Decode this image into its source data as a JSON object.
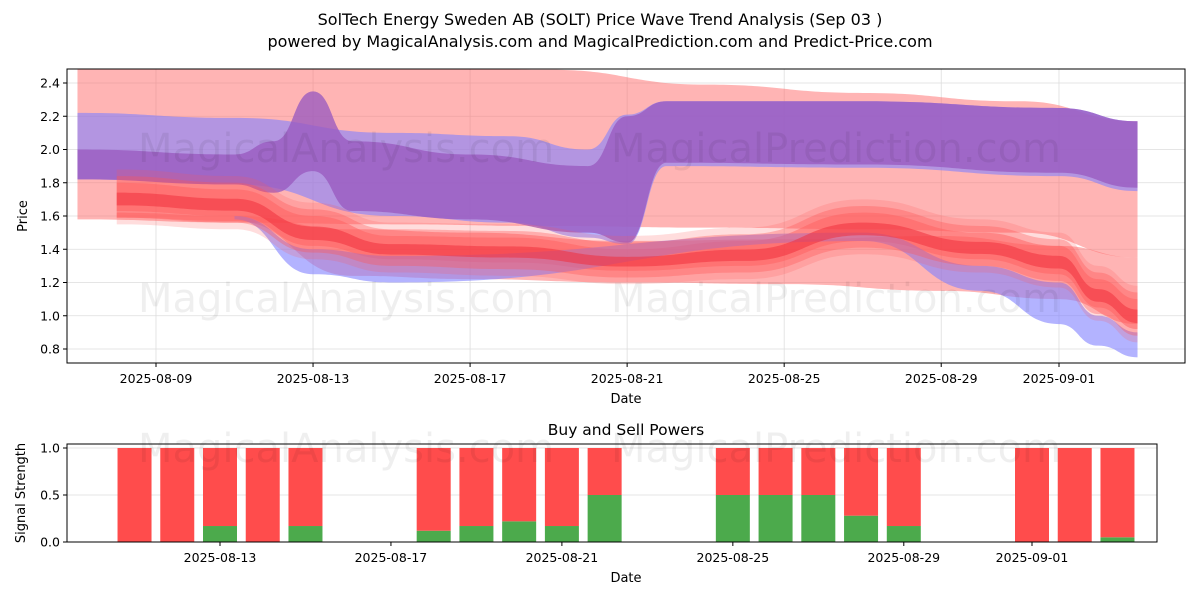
{
  "header": {
    "title": "SolTech Energy Sweden AB (SOLT) Price Wave Trend Analysis (Sep 03 )",
    "subtitle": "powered by MagicalAnalysis.com and MagicalPrediction.com and Predict-Price.com"
  },
  "watermarks": [
    "MagicalAnalysis.com",
    "MagicalPrediction.com"
  ],
  "colors": {
    "red_band": "#ff4a4a",
    "blue_band": "#6f6fff",
    "purple_overlap": "#9955bb",
    "buy": "#4caa4c",
    "sell": "#ff4c4c",
    "grid": "#dddddd"
  },
  "chart_data": [
    {
      "type": "area",
      "title": "",
      "xlabel": "Date",
      "ylabel": "Price",
      "ylim": [
        0.7,
        2.48
      ],
      "xlim": [
        "2025-08-06",
        "2025-09-04"
      ],
      "yticks": [
        "0.8",
        "1.0",
        "1.2",
        "1.4",
        "1.6",
        "1.8",
        "2.0",
        "2.2",
        "2.4"
      ],
      "xticks": [
        "2025-08-09",
        "2025-08-13",
        "2025-08-17",
        "2025-08-21",
        "2025-08-25",
        "2025-08-29",
        "2025-09-01"
      ],
      "grid": true,
      "series": [
        {
          "name": "red-wide-band",
          "color": "red",
          "x": [
            "2025-08-07",
            "2025-08-11",
            "2025-08-15",
            "2025-08-19",
            "2025-08-23",
            "2025-08-27",
            "2025-08-31",
            "2025-09-03"
          ],
          "upper": [
            2.5,
            2.5,
            2.5,
            2.48,
            2.39,
            2.34,
            2.29,
            2.17
          ],
          "lower": [
            1.58,
            1.56,
            1.55,
            1.54,
            1.53,
            1.52,
            1.5,
            1.35
          ]
        },
        {
          "name": "red-lower-band",
          "color": "red",
          "x": [
            "2025-08-08",
            "2025-08-11",
            "2025-08-14",
            "2025-08-17",
            "2025-08-21",
            "2025-08-25",
            "2025-08-29",
            "2025-09-01",
            "2025-09-03"
          ],
          "upper": [
            1.62,
            1.6,
            1.52,
            1.5,
            1.45,
            1.46,
            1.48,
            1.42,
            1.35
          ],
          "lower": [
            1.59,
            1.57,
            1.24,
            1.22,
            1.2,
            1.19,
            1.15,
            1.1,
            0.95
          ]
        },
        {
          "name": "blue-upper-band",
          "color": "blue",
          "x": [
            "2025-08-07",
            "2025-08-11",
            "2025-08-15",
            "2025-08-18",
            "2025-08-20",
            "2025-08-21",
            "2025-08-22",
            "2025-08-27",
            "2025-09-01",
            "2025-09-03"
          ],
          "upper": [
            2.22,
            2.19,
            2.1,
            2.08,
            2.0,
            2.21,
            2.29,
            2.29,
            2.25,
            2.17
          ],
          "lower": [
            1.82,
            1.79,
            1.6,
            1.56,
            1.47,
            1.43,
            1.9,
            1.89,
            1.84,
            1.75
          ]
        },
        {
          "name": "purple-overlap-band",
          "color": "purple",
          "x": [
            "2025-08-07",
            "2025-08-11",
            "2025-08-12",
            "2025-08-13",
            "2025-08-14",
            "2025-08-17",
            "2025-08-20",
            "2025-08-21",
            "2025-08-22",
            "2025-08-27",
            "2025-09-01",
            "2025-09-03"
          ],
          "upper": [
            2.0,
            1.97,
            2.05,
            2.35,
            2.05,
            1.97,
            1.9,
            2.2,
            2.29,
            2.29,
            2.25,
            2.17
          ],
          "lower": [
            1.82,
            1.79,
            1.74,
            1.87,
            1.63,
            1.58,
            1.5,
            1.44,
            1.92,
            1.91,
            1.86,
            1.77
          ]
        },
        {
          "name": "red-core-wave",
          "color": "red",
          "x": [
            "2025-08-08",
            "2025-08-11",
            "2025-08-13",
            "2025-08-15",
            "2025-08-18",
            "2025-08-21",
            "2025-08-24",
            "2025-08-27",
            "2025-08-30",
            "2025-09-01",
            "2025-09-02",
            "2025-09-03"
          ],
          "upper": [
            1.8,
            1.76,
            1.6,
            1.48,
            1.47,
            1.4,
            1.45,
            1.62,
            1.5,
            1.42,
            1.22,
            1.1
          ],
          "lower": [
            1.63,
            1.6,
            1.42,
            1.34,
            1.32,
            1.27,
            1.3,
            1.45,
            1.34,
            1.25,
            1.05,
            0.92
          ]
        },
        {
          "name": "blue-fan-lower",
          "color": "blue",
          "x": [
            "2025-08-11",
            "2025-08-13",
            "2025-08-15",
            "2025-08-27",
            "2025-08-30",
            "2025-09-01",
            "2025-09-02",
            "2025-09-03"
          ],
          "upper": [
            1.6,
            1.4,
            1.36,
            1.5,
            1.3,
            1.2,
            1.0,
            0.9
          ],
          "lower": [
            1.58,
            1.25,
            1.2,
            1.45,
            1.15,
            0.95,
            0.82,
            0.75
          ]
        }
      ]
    },
    {
      "type": "bar",
      "title": "Buy and Sell Powers",
      "xlabel": "Date",
      "ylabel": "Signal Strength",
      "ylim": [
        0,
        1.05
      ],
      "yticks": [
        "0.0",
        "0.5",
        "1.0"
      ],
      "xticks": [
        "2025-08-13",
        "2025-08-17",
        "2025-08-21",
        "2025-08-25",
        "2025-08-29",
        "2025-09-01"
      ],
      "xlim": [
        "2025-08-08",
        "2025-09-05"
      ],
      "grid": true,
      "categories": [
        "2025-08-11",
        "2025-08-12",
        "2025-08-13",
        "2025-08-14",
        "2025-08-15",
        "2025-08-18",
        "2025-08-19",
        "2025-08-20",
        "2025-08-21",
        "2025-08-22",
        "2025-08-25",
        "2025-08-26",
        "2025-08-27",
        "2025-08-28",
        "2025-08-29",
        "2025-09-01",
        "2025-09-02",
        "2025-09-03"
      ],
      "series": [
        {
          "name": "Buy",
          "values": [
            0.0,
            0.0,
            0.17,
            0.0,
            0.17,
            0.12,
            0.17,
            0.22,
            0.17,
            0.5,
            0.5,
            0.5,
            0.5,
            0.28,
            0.17,
            0.0,
            0.0,
            0.05
          ]
        },
        {
          "name": "Sell",
          "values": [
            1.0,
            1.0,
            0.83,
            1.0,
            0.83,
            0.88,
            0.83,
            0.78,
            0.83,
            0.5,
            0.5,
            0.5,
            0.5,
            0.72,
            0.83,
            1.0,
            1.0,
            0.95
          ]
        }
      ]
    }
  ]
}
